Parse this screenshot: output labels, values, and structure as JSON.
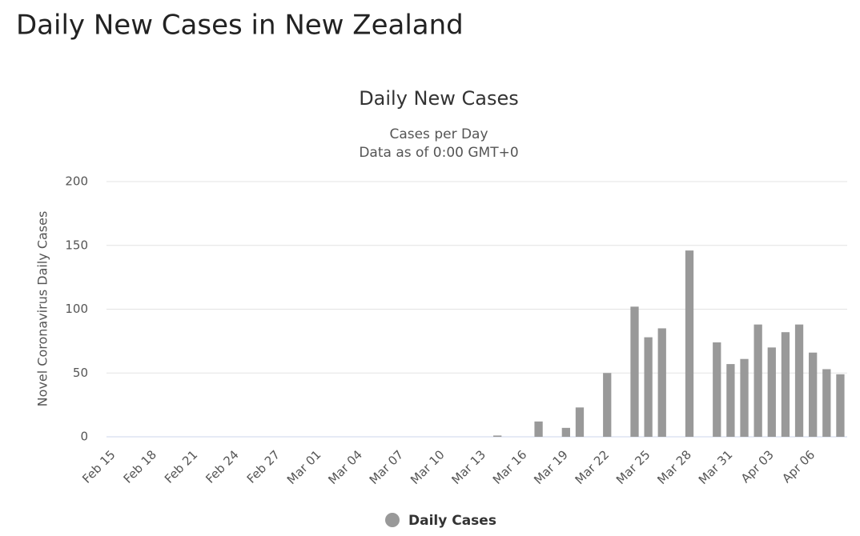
{
  "page_title": "Daily New Cases in New Zealand",
  "chart_data": {
    "type": "bar",
    "title": "Daily New Cases",
    "subtitle": [
      "Cases per Day",
      "Data as of 0:00 GMT+0"
    ],
    "y_label": "Novel Coronavirus Daily Cases",
    "categories": [
      "Feb 15",
      null,
      null,
      "Feb 18",
      null,
      null,
      "Feb 21",
      null,
      null,
      "Feb 24",
      null,
      null,
      "Feb 27",
      null,
      null,
      "Mar 01",
      null,
      null,
      "Mar 04",
      null,
      null,
      "Mar 07",
      null,
      null,
      "Mar 10",
      null,
      null,
      "Mar 13",
      null,
      null,
      "Mar 16",
      null,
      null,
      "Mar 19",
      null,
      null,
      "Mar 22",
      null,
      null,
      "Mar 25",
      null,
      null,
      "Mar 28",
      null,
      null,
      "Mar 31",
      null,
      null,
      "Apr 03",
      null,
      null,
      "Apr 06",
      null,
      null
    ],
    "series": [
      {
        "name": "Daily Cases",
        "color": "#999999",
        "values": [
          0,
          0,
          0,
          0,
          0,
          0,
          0,
          0,
          0,
          0,
          0,
          0,
          0,
          0,
          0,
          0,
          0,
          0,
          0,
          0,
          0,
          0,
          0,
          0,
          0,
          0,
          0,
          0,
          1,
          0,
          0,
          12,
          0,
          7,
          23,
          0,
          50,
          0,
          102,
          78,
          85,
          0,
          146,
          0,
          74,
          57,
          61,
          88,
          70,
          82,
          88,
          66,
          53,
          49
        ]
      }
    ],
    "ylim": [
      0,
      200
    ],
    "yticks": [
      0,
      50,
      100,
      150,
      200
    ],
    "grid": true
  }
}
